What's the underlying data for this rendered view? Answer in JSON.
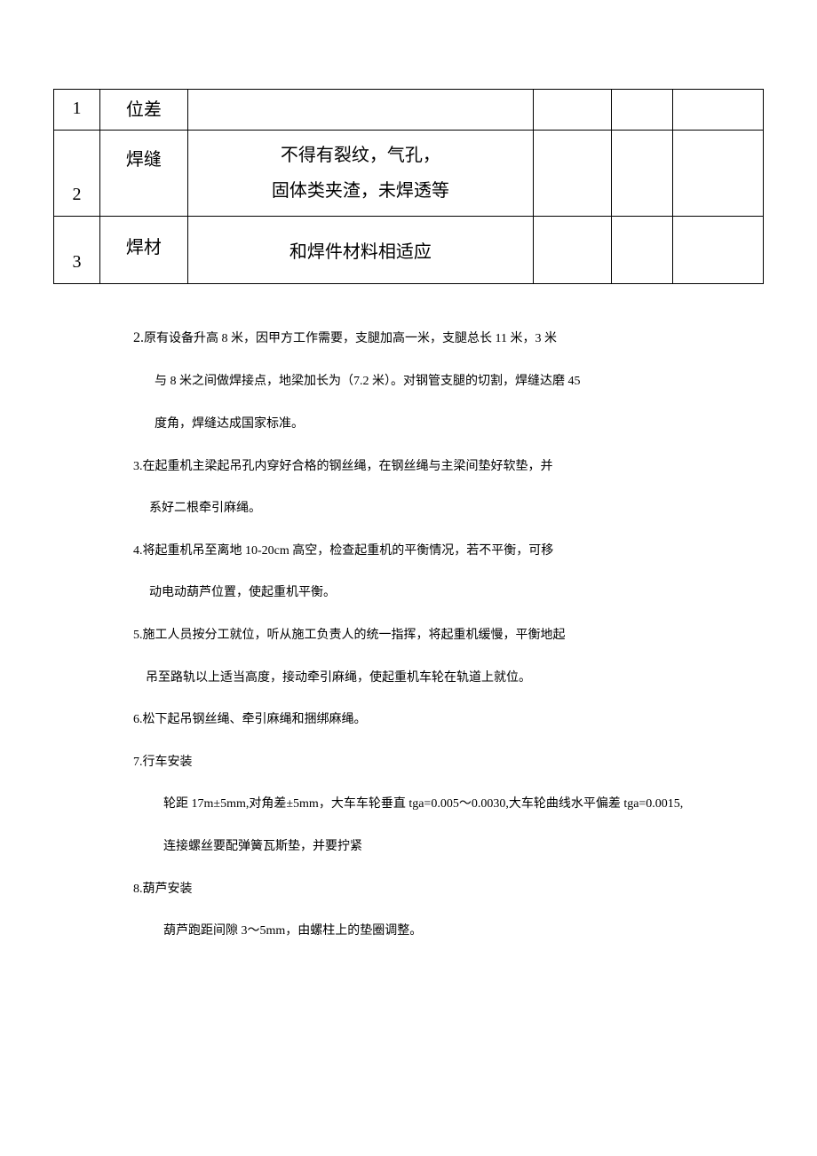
{
  "table": {
    "rows": [
      {
        "n": "1",
        "name": "位差",
        "spec": ""
      },
      {
        "n": "2",
        "name": "焊缝",
        "spec_l1": "不得有裂纹，气孔，",
        "spec_l2": "固体类夹渣，未焊透等"
      },
      {
        "n": "3",
        "name": "焊材",
        "spec": "和焊件材料相适应"
      }
    ]
  },
  "body": {
    "p2_num": "2.",
    "p2_l1": "原有设备升高 8 米，因甲方工作需要，支腿加高一米，支腿总长 11 米，3 米",
    "p2_l2": "与 8 米之间做焊接点，地梁加长为（7.2 米）。对钢管支腿的切割，焊缝达磨 45",
    "p2_l3": "度角，焊缝达成国家标准。",
    "p3_l1": "3.在起重机主梁起吊孔内穿好合格的钢丝绳，在钢丝绳与主梁间垫好软垫，并",
    "p3_l2": "系好二根牵引麻绳。",
    "p4_l1": "4.将起重机吊至离地 10-20cm 高空，检查起重机的平衡情况，若不平衡，可移",
    "p4_l2": "动电动葫芦位置，使起重机平衡。",
    "p5_l1": "5.施工人员按分工就位，听从施工负责人的统一指挥，将起重机缓慢，平衡地起",
    "p5_l2": "吊至路轨以上适当高度，接动牵引麻绳，使起重机车轮在轨道上就位。",
    "p6": "6.松下起吊钢丝绳、牵引麻绳和捆绑麻绳。",
    "p7": "7.行车安装",
    "p7_s1": "轮距 17m±5mm,对角差±5mm，大车车轮垂直 tga=0.005～0.0030,大车轮曲线水平偏差 tga=0.0015,",
    "p7_s2": "连接螺丝要配弹簧瓦斯垫，并要拧紧",
    "p8": "8.葫芦安装",
    "p8_s1": "葫芦跑距间隙 3～5mm，由螺柱上的垫圈调整。"
  }
}
